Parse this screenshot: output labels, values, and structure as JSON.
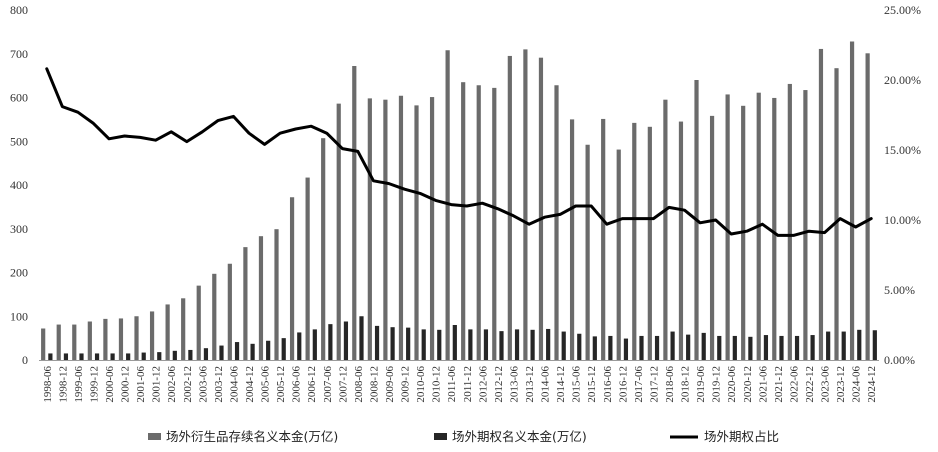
{
  "chart_data": {
    "type": "bar",
    "categories": [
      "1998-06",
      "1998-12",
      "1999-06",
      "1999-12",
      "2000-06",
      "2000-12",
      "2001-06",
      "2001-12",
      "2002-06",
      "2002-12",
      "2003-06",
      "2003-12",
      "2004-06",
      "2004-12",
      "2005-06",
      "2005-12",
      "2006-06",
      "2006-12",
      "2007-06",
      "2007-12",
      "2008-06",
      "2008-12",
      "2009-06",
      "2009-12",
      "2010-06",
      "2010-12",
      "2011-06",
      "2011-12",
      "2012-06",
      "2012-12",
      "2013-06",
      "2013-12",
      "2014-06",
      "2014-12",
      "2015-06",
      "2015-12",
      "2016-06",
      "2016-12",
      "2017-06",
      "2017-12",
      "2018-06",
      "2018-12",
      "2019-06",
      "2019-12",
      "2020-06",
      "2020-12",
      "2021-06",
      "2021-12",
      "2022-06",
      "2022-12",
      "2023-06",
      "2023-12",
      "2024-06",
      "2024-12"
    ],
    "series": [
      {
        "name": "场外衍生品存续名义本金(万亿)",
        "type": "bar",
        "axis": "left",
        "color": "#6b6b6b",
        "values": [
          72,
          81,
          81,
          88,
          94,
          95,
          100,
          111,
          127,
          141,
          170,
          197,
          220,
          258,
          283,
          299,
          372,
          417,
          507,
          586,
          672,
          598,
          595,
          604,
          582,
          601,
          708,
          635,
          628,
          622,
          695,
          710,
          691,
          628,
          550,
          492,
          551,
          481,
          542,
          533,
          595,
          545,
          640,
          558,
          607,
          581,
          611,
          599,
          631,
          617,
          711,
          667,
          728,
          701
        ]
      },
      {
        "name": "场外期权名义本金(万亿)",
        "type": "bar",
        "axis": "left",
        "color": "#262626",
        "values": [
          15,
          15,
          15,
          15,
          15,
          15,
          17,
          18,
          21,
          23,
          27,
          33,
          41,
          37,
          44,
          50,
          63,
          70,
          82,
          88,
          100,
          78,
          75,
          74,
          70,
          69,
          80,
          70,
          70,
          66,
          70,
          69,
          71,
          65,
          60,
          54,
          55,
          49,
          55,
          55,
          65,
          58,
          62,
          55,
          55,
          53,
          57,
          55,
          55,
          57,
          65,
          65,
          69,
          68
        ]
      },
      {
        "name": "场外期权占比",
        "type": "line",
        "axis": "right",
        "color": "#000000",
        "values": [
          20.8,
          18.1,
          17.7,
          16.9,
          15.8,
          16.0,
          15.9,
          15.7,
          16.3,
          15.6,
          16.3,
          17.1,
          17.4,
          16.2,
          15.4,
          16.2,
          16.5,
          16.7,
          16.2,
          15.1,
          14.9,
          12.8,
          12.6,
          12.2,
          11.9,
          11.4,
          11.1,
          11.0,
          11.2,
          10.8,
          10.3,
          9.7,
          10.2,
          10.4,
          11.0,
          11.0,
          9.7,
          10.1,
          10.1,
          10.1,
          10.9,
          10.7,
          9.8,
          10.0,
          9.0,
          9.2,
          9.7,
          8.9,
          8.9,
          9.2,
          9.1,
          10.1,
          9.5,
          10.1
        ]
      }
    ],
    "y_left": {
      "min": 0,
      "max": 800,
      "ticks": [
        "0",
        "100",
        "200",
        "300",
        "400",
        "500",
        "600",
        "700",
        "800"
      ]
    },
    "y_right": {
      "min": 0,
      "max": 25,
      "ticks": [
        "0.00%",
        "5.00%",
        "10.00%",
        "15.00%",
        "20.00%",
        "25.00%"
      ]
    },
    "grid": false,
    "legend_position": "bottom",
    "title": "",
    "xlabel": "",
    "ylabel": ""
  }
}
